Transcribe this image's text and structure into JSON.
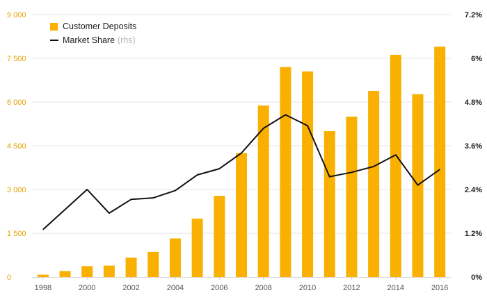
{
  "colors": {
    "bar": "#f9b000",
    "line": "#111111",
    "left_axis_text": "#e3a300",
    "grid": "#e4e4e4"
  },
  "legend": {
    "deposits_label": "Customer Deposits",
    "share_label": "Market Share",
    "share_suffix": "(rhs)"
  },
  "chart_data": {
    "type": "bar",
    "title": "",
    "categories": [
      "1998",
      "1999",
      "2000",
      "2001",
      "2002",
      "2003",
      "2004",
      "2005",
      "2006",
      "2007",
      "2008",
      "2009",
      "2010",
      "2011",
      "2012",
      "2013",
      "2014",
      "2015",
      "2016"
    ],
    "x_tick_labels": [
      "1998",
      "2000",
      "2002",
      "2004",
      "2006",
      "2008",
      "2010",
      "2012",
      "2014",
      "2016"
    ],
    "y_left": {
      "ylim": [
        0,
        9000
      ],
      "ticks": [
        0,
        1500,
        3000,
        4500,
        6000,
        7500,
        9000
      ],
      "tick_labels": [
        "0",
        "1 500",
        "3 000",
        "4 500",
        "6 000",
        "7 500",
        "9 000"
      ]
    },
    "y_right": {
      "ylim": [
        0,
        7.2
      ],
      "ticks": [
        0,
        1.2,
        2.4,
        3.6,
        4.8,
        6,
        7.2
      ],
      "tick_labels": [
        "0%",
        "1.2%",
        "2.4%",
        "3.6%",
        "4.8%",
        "6%",
        "7.2%"
      ]
    },
    "series": [
      {
        "name": "Customer Deposits",
        "type": "bar",
        "axis": "left",
        "values": [
          80,
          200,
          370,
          390,
          660,
          860,
          1320,
          2000,
          2780,
          4250,
          5880,
          7200,
          7050,
          5000,
          5500,
          6380,
          7620,
          6270,
          7900
        ]
      },
      {
        "name": "Market Share",
        "type": "line",
        "axis": "right",
        "values": [
          1.3,
          1.85,
          2.4,
          1.75,
          2.13,
          2.17,
          2.37,
          2.8,
          2.97,
          3.4,
          4.08,
          4.45,
          4.15,
          2.75,
          2.87,
          3.03,
          3.35,
          2.52,
          2.95
        ]
      }
    ],
    "grid": true,
    "legend_position": "top-left"
  }
}
